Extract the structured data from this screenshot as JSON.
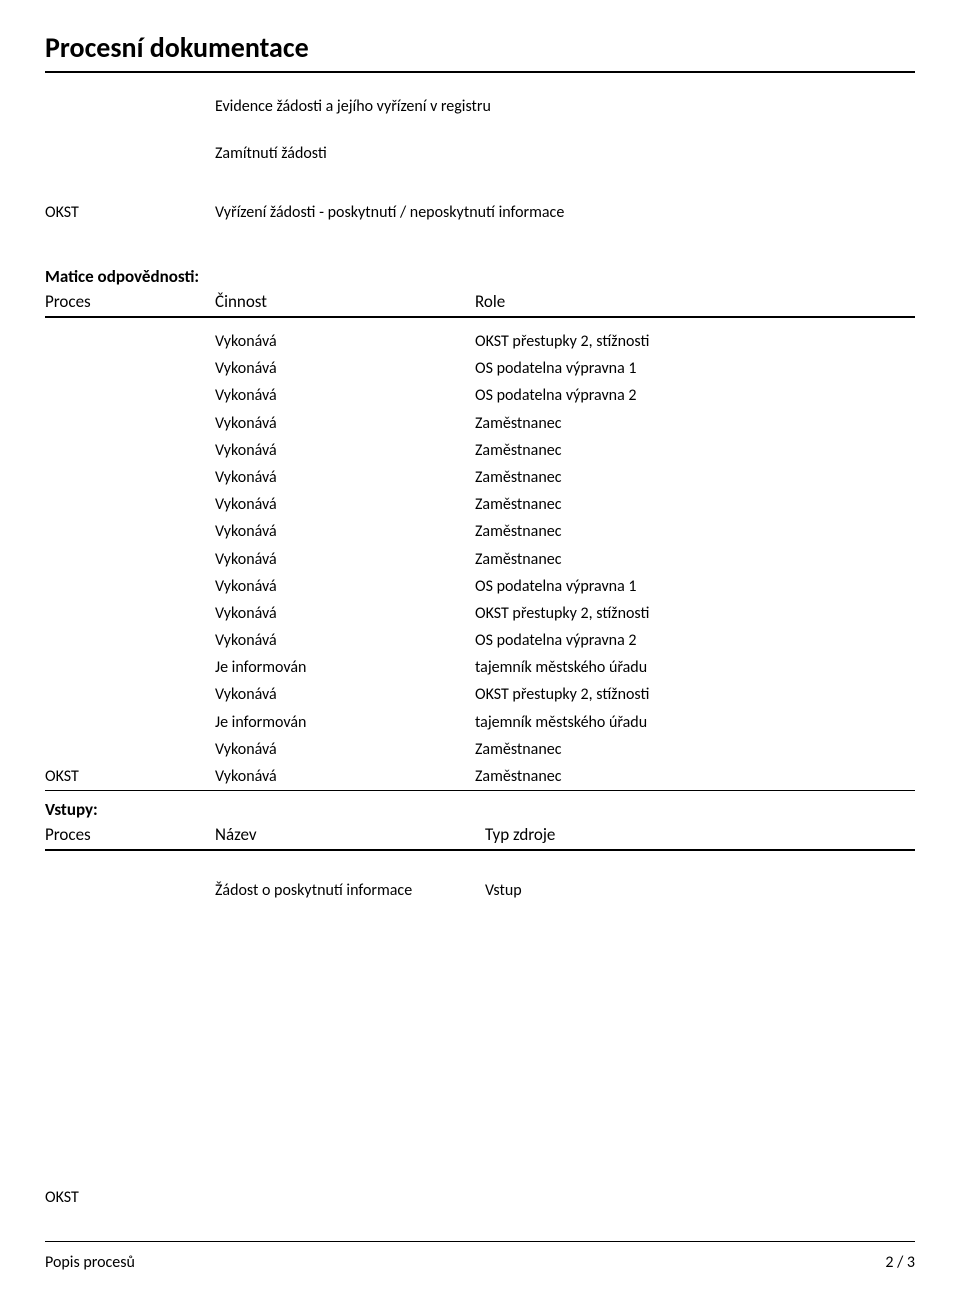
{
  "page": {
    "title": "Procesní dokumentace",
    "line1": "Evidence žádosti a jejího vyřízení v registru",
    "line2": "Zamítnutí žádosti",
    "okst_label": "OKST",
    "okst_text": "Vyřízení žádosti - poskytnutí / neposkytnutí informace"
  },
  "matrix": {
    "heading": "Matice odpovědnosti:",
    "col_proces": "Proces",
    "col_cinnost": "Činnost",
    "col_role": "Role",
    "rows": [
      {
        "p": "",
        "a": "Vykonává",
        "r": "OKST přestupky 2, stížnosti"
      },
      {
        "p": "",
        "a": "Vykonává",
        "r": "OS podatelna výpravna 1"
      },
      {
        "p": "",
        "a": "Vykonává",
        "r": "OS podatelna výpravna 2"
      },
      {
        "p": "",
        "a": "Vykonává",
        "r": "Zaměstnanec"
      },
      {
        "p": "",
        "a": "Vykonává",
        "r": "Zaměstnanec"
      },
      {
        "p": "",
        "a": "Vykonává",
        "r": "Zaměstnanec"
      },
      {
        "p": "",
        "a": "Vykonává",
        "r": "Zaměstnanec"
      },
      {
        "p": "",
        "a": "Vykonává",
        "r": "Zaměstnanec"
      },
      {
        "p": "",
        "a": "Vykonává",
        "r": "Zaměstnanec"
      },
      {
        "p": "",
        "a": "Vykonává",
        "r": "OS podatelna výpravna 1"
      },
      {
        "p": "",
        "a": "Vykonává",
        "r": "OKST přestupky 2, stížnosti"
      },
      {
        "p": "",
        "a": "Vykonává",
        "r": "OS podatelna výpravna 2"
      },
      {
        "p": "",
        "a": "Je informován",
        "r": "tajemník městského úřadu"
      },
      {
        "p": "",
        "a": "Vykonává",
        "r": "OKST přestupky 2, stížnosti"
      },
      {
        "p": "",
        "a": "Je informován",
        "r": "tajemník městského úřadu"
      },
      {
        "p": "",
        "a": "Vykonává",
        "r": "Zaměstnanec"
      },
      {
        "p": "OKST",
        "a": "Vykonává",
        "r": "Zaměstnanec"
      }
    ]
  },
  "inputs": {
    "heading": "Vstupy:",
    "col_proces": "Proces",
    "col_nazev": "Název",
    "col_typ": "Typ zdroje",
    "row": {
      "p": "",
      "n": "Žádost o poskytnutí informace",
      "t": "Vstup"
    }
  },
  "bottom_okst": "OKST",
  "footer": {
    "left": "Popis procesů",
    "right": "2 / 3"
  },
  "colors": {
    "text": "#000000",
    "bg": "#ffffff",
    "rule": "#000000"
  }
}
